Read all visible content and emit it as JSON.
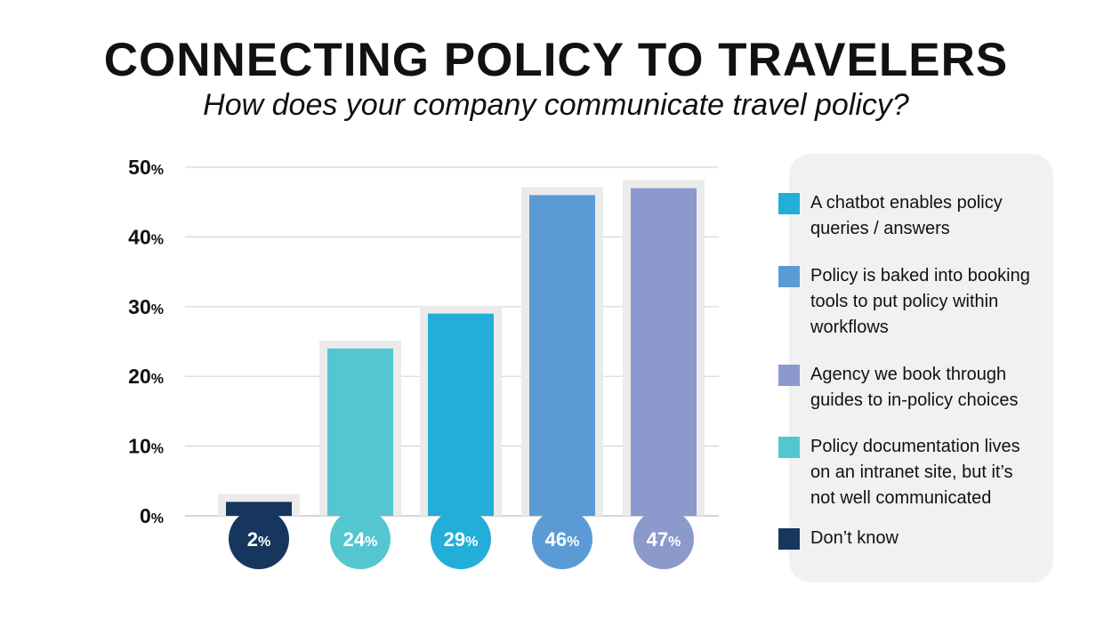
{
  "header": {
    "title": "CONNECTING POLICY TO TRAVELERS",
    "subtitle": "How does your company communicate travel policy?"
  },
  "chart_data": {
    "type": "bar",
    "categories": [
      "Don’t know",
      "Policy documentation lives on an intranet site, but it’s not well communicated",
      "A chatbot enables policy queries / answers",
      "Policy is baked into booking tools to put policy within workflows",
      "Agency we book through guides to in-policy choices"
    ],
    "values": [
      2,
      24,
      29,
      46,
      47
    ],
    "value_labels": [
      "2%",
      "24%",
      "29%",
      "46%",
      "47%"
    ],
    "colors": [
      "#17365d",
      "#54c6cf",
      "#22aed9",
      "#5b9bd5",
      "#8b99cc"
    ],
    "ylim": [
      0,
      50
    ],
    "y_ticks": [
      {
        "value": 0,
        "label": "0%"
      },
      {
        "value": 10,
        "label": "10%"
      },
      {
        "value": 20,
        "label": "20%"
      },
      {
        "value": 30,
        "label": "30%"
      },
      {
        "value": 40,
        "label": "40%"
      },
      {
        "value": 50,
        "label": "50%"
      }
    ],
    "grid": true,
    "legend_position": "right"
  },
  "legend": {
    "items": [
      {
        "label": "A chatbot enables policy queries / answers",
        "color": "#22aed9"
      },
      {
        "label": "Policy is baked into booking tools to put policy within workflows",
        "color": "#5b9bd5"
      },
      {
        "label": "Agency we book through guides to in-policy choices",
        "color": "#8b99cc"
      },
      {
        "label": "Policy documentation lives on an intranet site, but it’s not well communicated",
        "color": "#54c6cf"
      },
      {
        "label": "Don’t know",
        "color": "#17365d"
      }
    ]
  }
}
